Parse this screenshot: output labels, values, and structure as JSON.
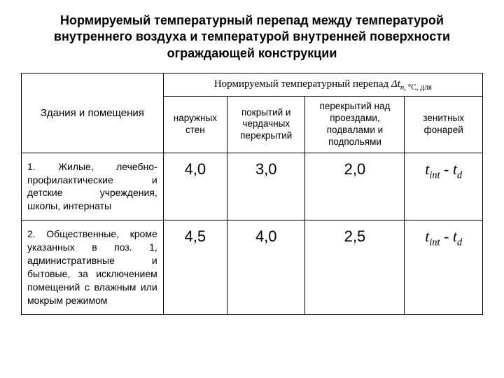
{
  "title": "Нормируемый температурный перепад между температурой внутреннего воздуха и температурой внутренней поверхности ограждающей конструкции",
  "table": {
    "rooms_header": "Здания и помещения",
    "span_header_prefix": "Нормируемый температурный перепад ",
    "span_header_symbol": "Δt",
    "span_header_sub": "n",
    "span_header_unit": ", °С, для",
    "cols": [
      "наружных стен",
      "покрытий и чердачных перекрытий",
      "перекрытий над проездами, подвалами и подпольями",
      "зенитных фонарей"
    ],
    "rows": [
      {
        "desc": "1. Жилые, лечебно-профилактические и детские учреждения, школы, интернаты",
        "v1": "4,0",
        "v2": "3,0",
        "v3": "2,0",
        "formula_t1": "t",
        "formula_s1": "int",
        "formula_sep": " - ",
        "formula_t2": "t",
        "formula_s2": "d"
      },
      {
        "desc": "2. Общественные, кроме указанных в поз. 1, административные и бытовые, за исключением помещений с влажным или мокрым режимом",
        "v1": "4,5",
        "v2": "4,0",
        "v3": "2,5",
        "formula_t1": "t",
        "formula_s1": "int",
        "formula_sep": " - ",
        "formula_t2": "t",
        "formula_s2": "d"
      }
    ]
  }
}
